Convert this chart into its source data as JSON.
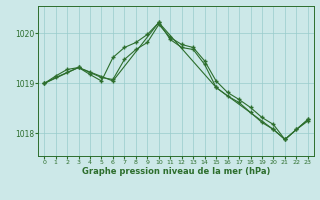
{
  "xlabel": "Graphe pression niveau de la mer (hPa)",
  "bg_color": "#cce8e8",
  "grid_color": "#99cccc",
  "line_color": "#2d6e2d",
  "marker": "+",
  "xlim": [
    -0.5,
    23.5
  ],
  "ylim": [
    1017.55,
    1020.55
  ],
  "yticks": [
    1018,
    1019,
    1020
  ],
  "xticks": [
    0,
    1,
    2,
    3,
    4,
    5,
    6,
    7,
    8,
    9,
    10,
    11,
    12,
    13,
    14,
    15,
    16,
    17,
    18,
    19,
    20,
    21,
    22,
    23
  ],
  "line1_x": [
    0,
    1,
    2,
    3,
    4,
    5,
    6,
    7,
    8,
    9,
    10,
    11,
    12,
    13,
    14,
    15,
    16,
    17,
    18,
    19,
    20,
    21,
    22,
    23
  ],
  "line1_y": [
    1019.0,
    1019.15,
    1019.28,
    1019.32,
    1019.22,
    1019.12,
    1019.08,
    1019.48,
    1019.68,
    1019.82,
    1020.18,
    1019.92,
    1019.78,
    1019.72,
    1019.45,
    1019.05,
    1018.82,
    1018.68,
    1018.52,
    1018.32,
    1018.18,
    1017.88,
    1018.08,
    1018.28
  ],
  "line2_x": [
    0,
    1,
    2,
    3,
    4,
    5,
    6,
    7,
    8,
    9,
    10,
    11,
    12,
    13,
    14,
    15,
    16,
    17,
    18,
    19,
    20,
    21,
    22,
    23
  ],
  "line2_y": [
    1019.0,
    1019.12,
    1019.22,
    1019.32,
    1019.18,
    1019.05,
    1019.52,
    1019.72,
    1019.82,
    1019.98,
    1020.22,
    1019.88,
    1019.72,
    1019.68,
    1019.38,
    1018.92,
    1018.75,
    1018.62,
    1018.42,
    1018.22,
    1018.08,
    1017.88,
    1018.08,
    1018.25
  ],
  "line3_x": [
    0,
    3,
    6,
    10,
    15,
    20,
    21,
    23
  ],
  "line3_y": [
    1019.0,
    1019.32,
    1019.05,
    1020.22,
    1018.92,
    1018.08,
    1017.88,
    1018.28
  ]
}
